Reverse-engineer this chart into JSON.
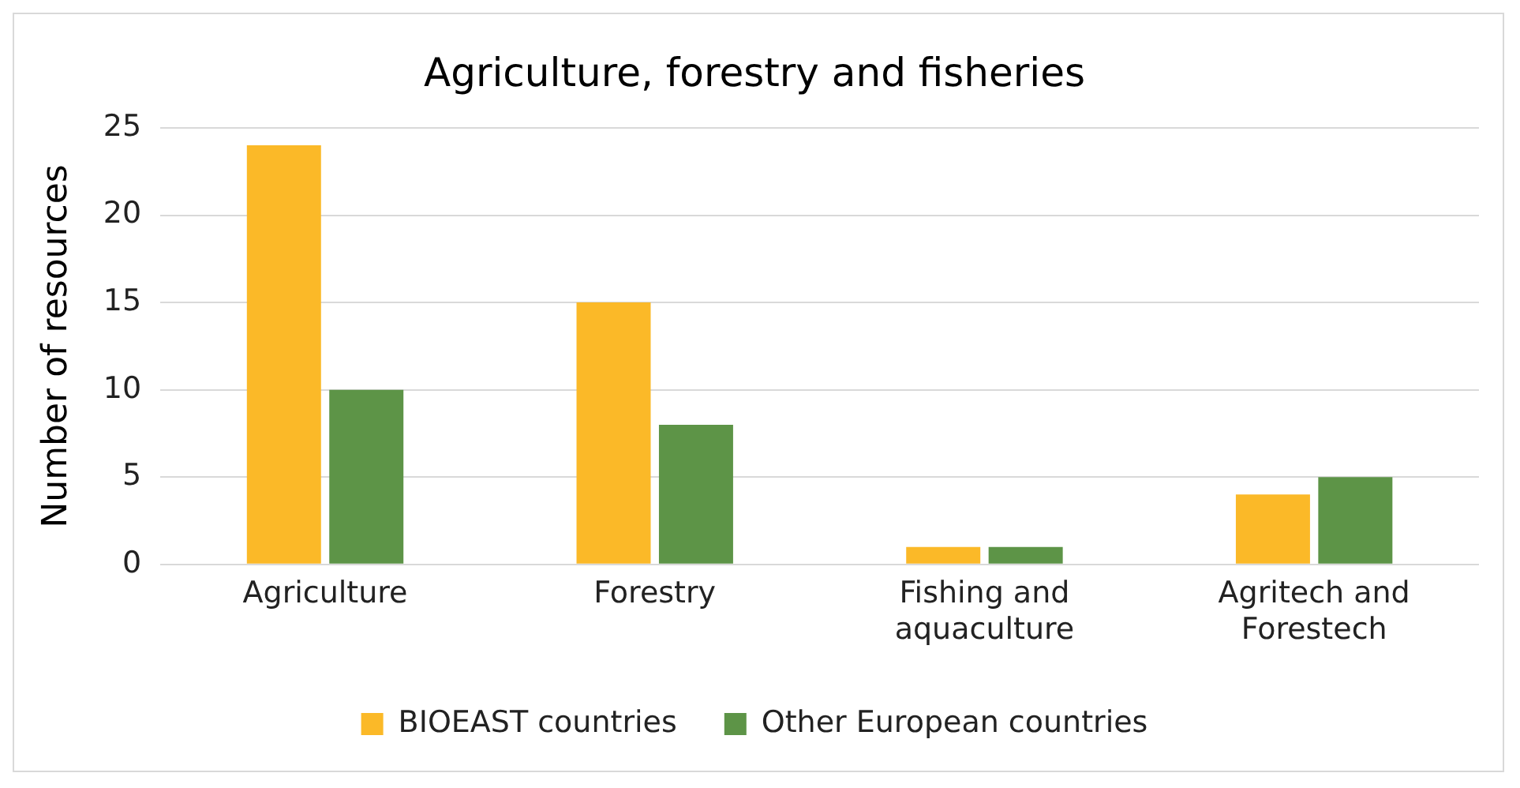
{
  "chart_data": {
    "type": "bar",
    "title": "Agriculture, forestry and fisheries",
    "ylabel": "Number of resources",
    "categories": [
      "Agriculture",
      "Forestry",
      "Fishing and aquaculture",
      "Agritech and Forestech"
    ],
    "series": [
      {
        "name": "BIOEAST countries",
        "color": "#fbb928",
        "values": [
          24,
          15,
          1,
          4
        ]
      },
      {
        "name": "Other European countries",
        "color": "#5d9447",
        "values": [
          10,
          8,
          1,
          5
        ]
      }
    ],
    "ylim": [
      0,
      25
    ],
    "yticks": [
      0,
      5,
      10,
      15,
      20,
      25
    ],
    "grid": "y",
    "legend": "bottom"
  }
}
